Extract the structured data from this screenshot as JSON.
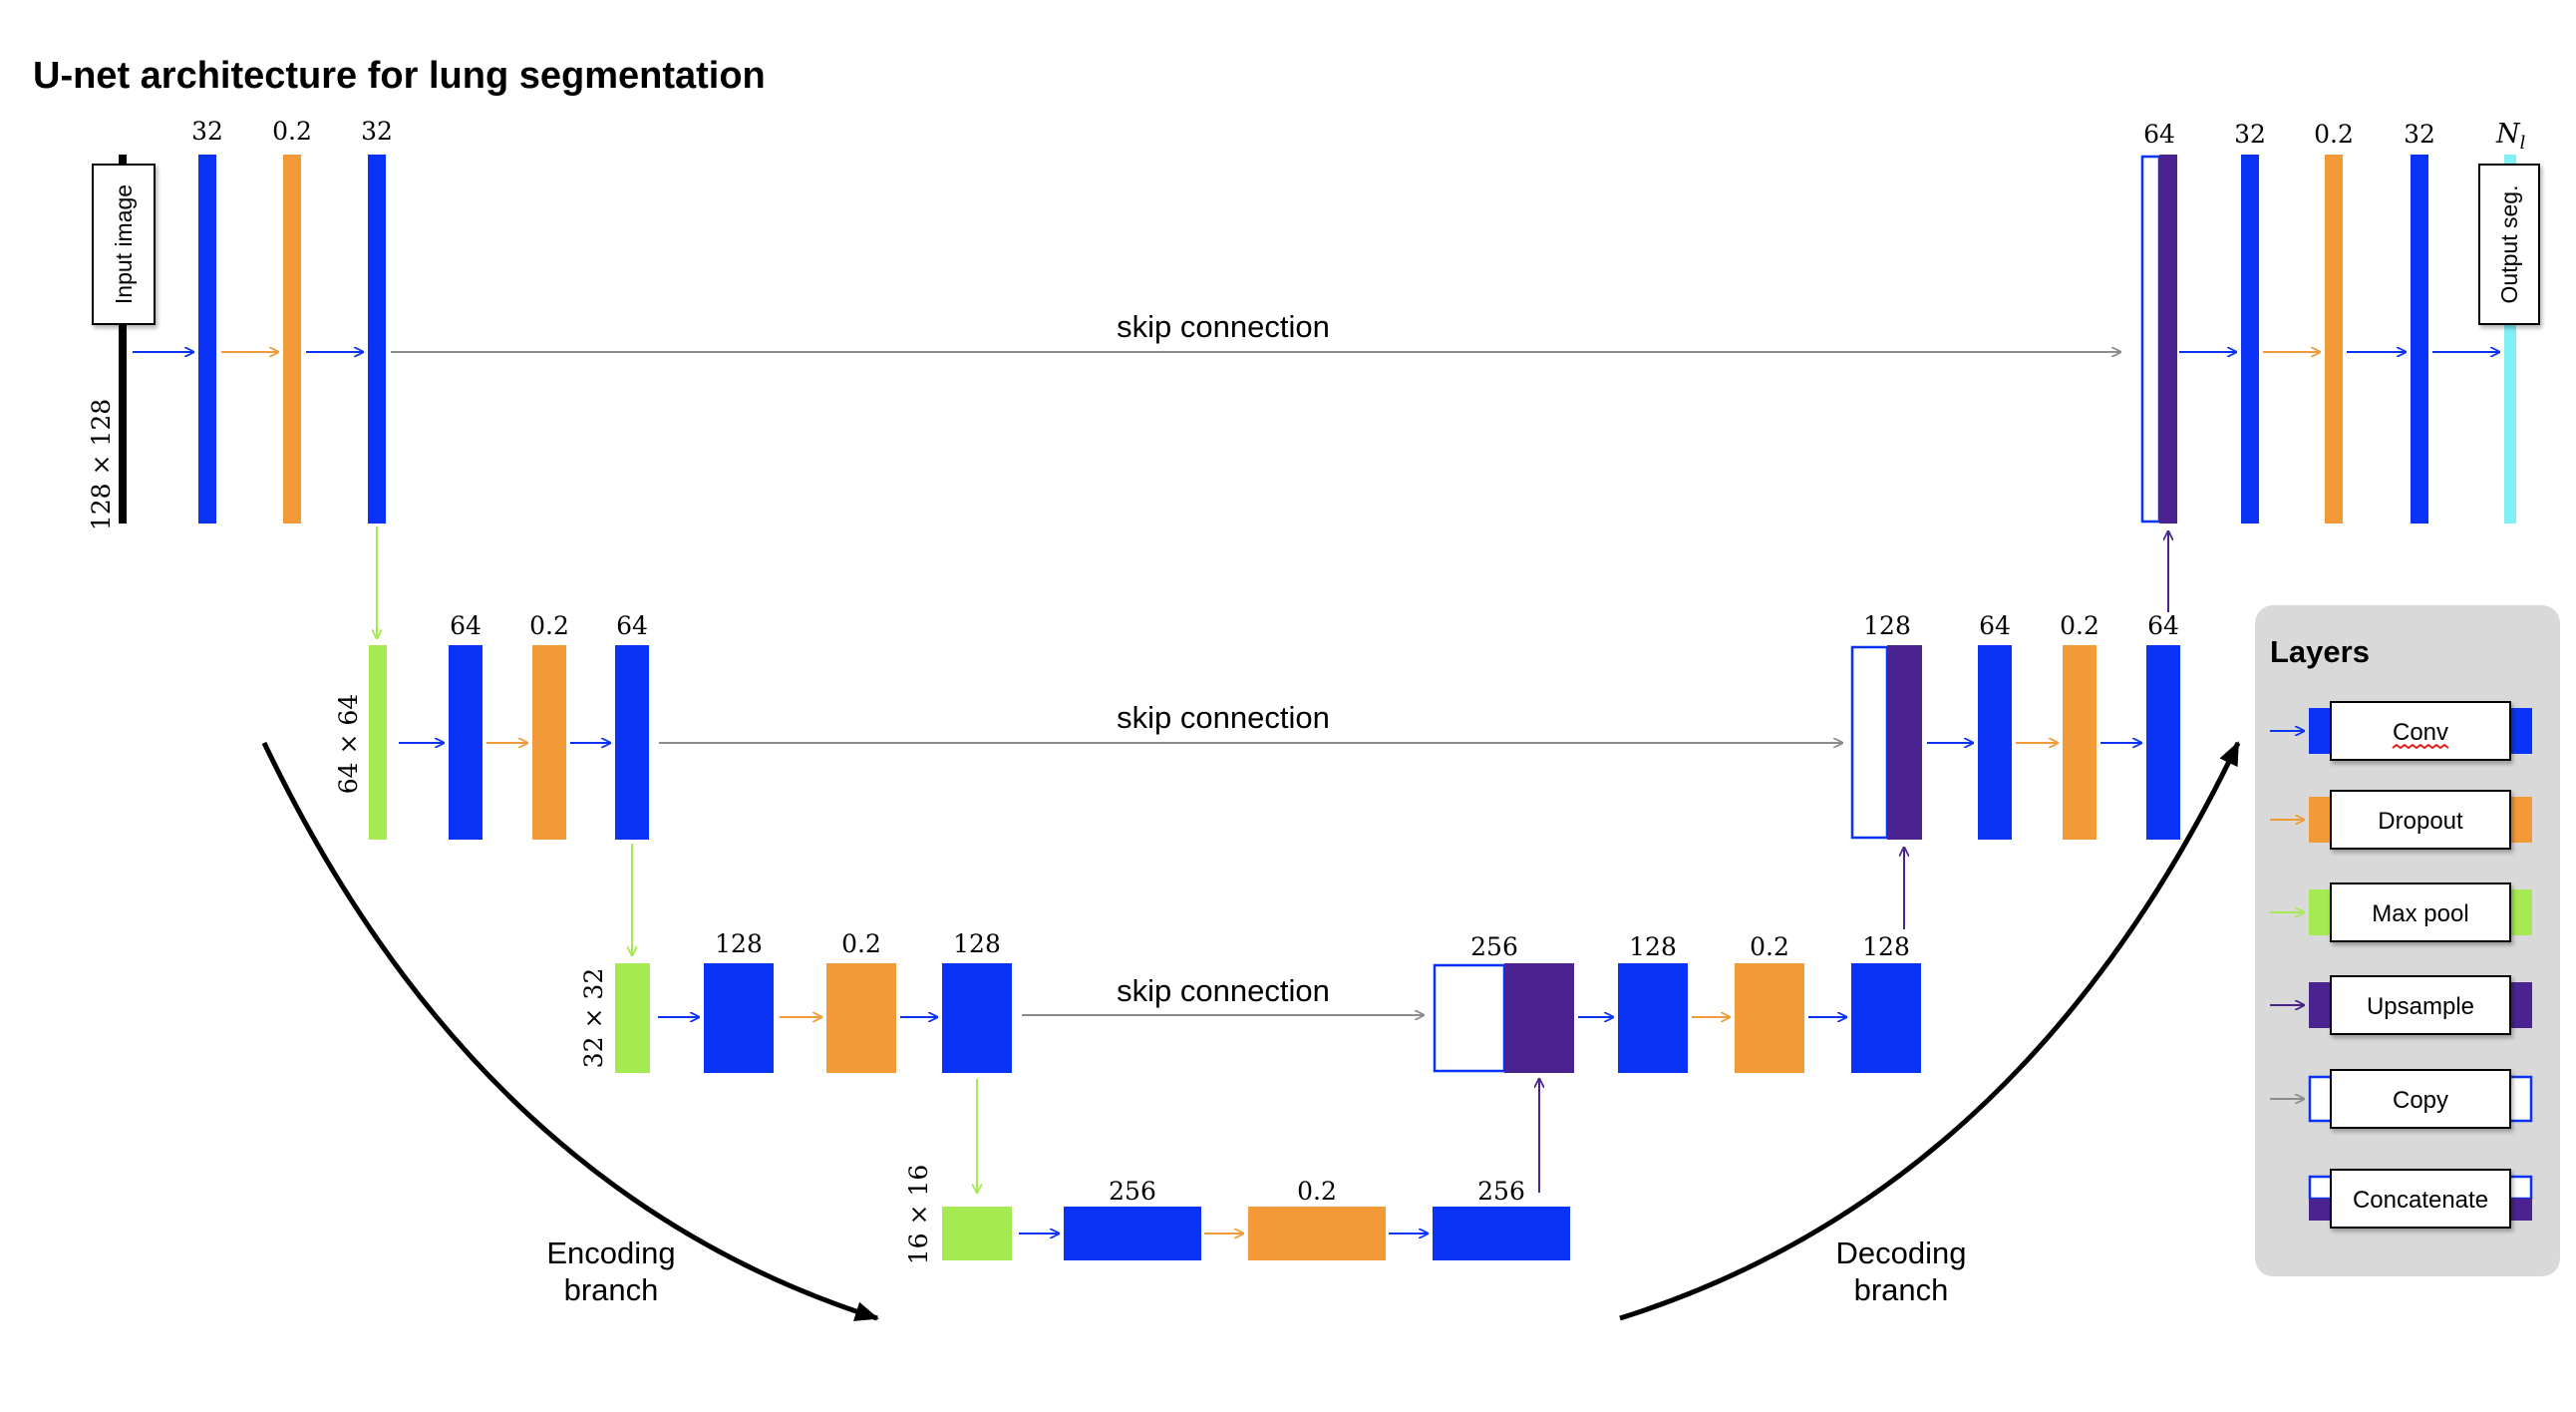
{
  "title": "U-net architecture for lung segmentation",
  "colors": {
    "conv": "#0a33f5",
    "dropout": "#f29a38",
    "maxpool": "#a6ea52",
    "upsample": "#4b2390",
    "copy": "#8c8c8c",
    "output": "#7ff0f4",
    "legend_bg": "#d9d9d9"
  },
  "side_labels": {
    "input": "Input image",
    "output": "Output seg.",
    "res_128": "128 × 128",
    "res_64": "64 × 64",
    "res_32": "32 × 32",
    "res_16": "16 × 16"
  },
  "skip_label": "skip connection",
  "channels": {
    "l1_enc": [
      "32",
      "0.2",
      "32"
    ],
    "l1_dec": [
      "64",
      "32",
      "0.2",
      "32",
      "N_l"
    ],
    "l2_enc": [
      "64",
      "0.2",
      "64"
    ],
    "l2_dec": [
      "128",
      "64",
      "0.2",
      "64"
    ],
    "l3_enc": [
      "128",
      "0.2",
      "128"
    ],
    "l3_dec": [
      "256",
      "128",
      "0.2",
      "128"
    ],
    "l4": [
      "256",
      "0.2",
      "256"
    ]
  },
  "branches": {
    "encoding": [
      "Encoding",
      "branch"
    ],
    "decoding": [
      "Decoding",
      "branch"
    ]
  },
  "legend": {
    "title": "Layers",
    "items": [
      "Conv",
      "Dropout",
      "Max pool",
      "Upsample",
      "Copy",
      "Concatenate"
    ]
  }
}
